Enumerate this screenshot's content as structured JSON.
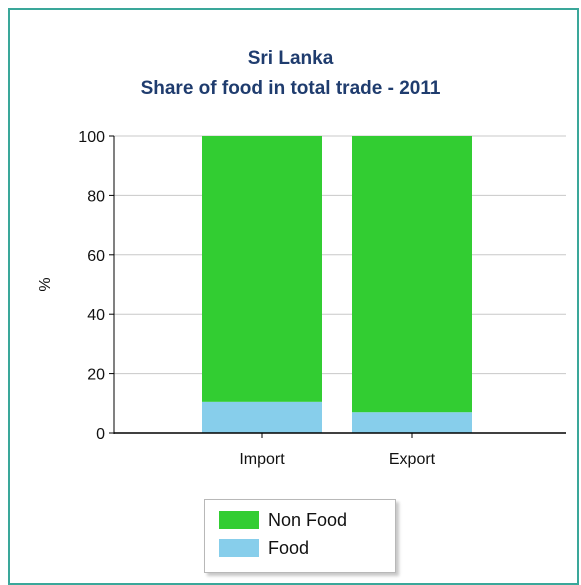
{
  "chart_data": {
    "type": "bar",
    "stacked": true,
    "title": "Sri Lanka",
    "subtitle": "Share of food in total trade - 2011",
    "xlabel": "",
    "ylabel": "%",
    "categories": [
      "Import",
      "Export"
    ],
    "ylim": [
      0,
      100
    ],
    "yticks": [
      0,
      20,
      40,
      60,
      80,
      100
    ],
    "grid": true,
    "legend_position": "bottom",
    "series": [
      {
        "name": "Food",
        "color": "#87ceeb",
        "values": [
          10.5,
          7
        ]
      },
      {
        "name": "Non Food",
        "color": "#32cd32",
        "values": [
          89.5,
          93
        ]
      }
    ],
    "legend": [
      {
        "name": "Non Food",
        "color": "#32cd32"
      },
      {
        "name": "Food",
        "color": "#87ceeb"
      }
    ]
  }
}
